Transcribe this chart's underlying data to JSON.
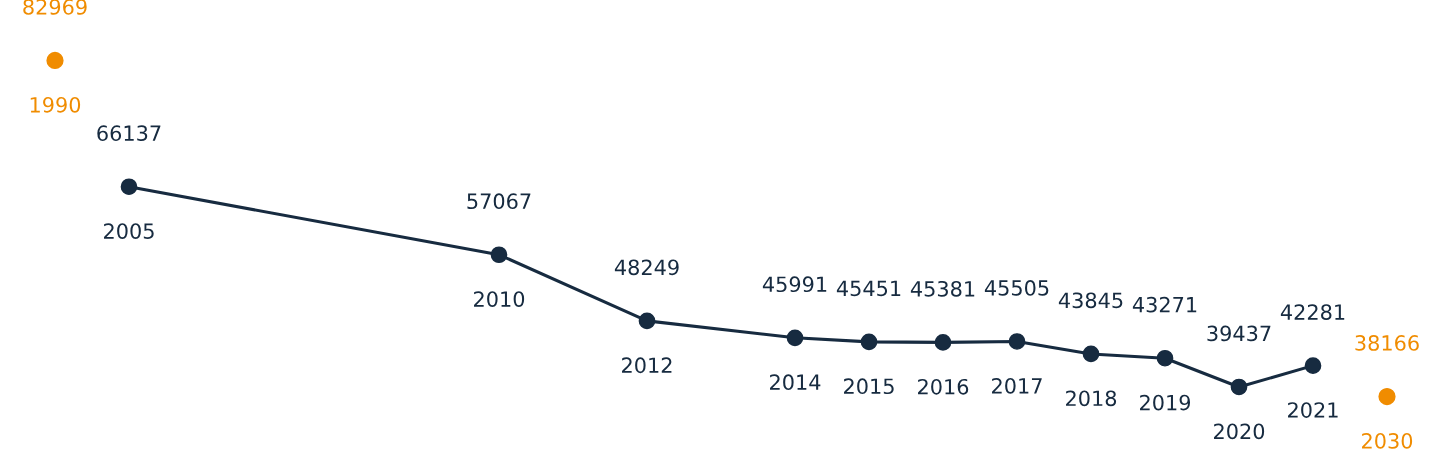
{
  "chart_data": {
    "type": "line",
    "categories": [
      "1990",
      "2005",
      null,
      null,
      null,
      null,
      "2010",
      null,
      "2012",
      null,
      "2014",
      "2015",
      "2016",
      "2017",
      "2018",
      "2019",
      "2020",
      "2021",
      "2030"
    ],
    "data_labels": true,
    "marker": "circle",
    "legend": false,
    "series": [
      {
        "type": "scatter",
        "color": "#f08c00",
        "values": [
          82969,
          null,
          null,
          null,
          null,
          null,
          null,
          null,
          null,
          null,
          null,
          null,
          null,
          null,
          null,
          null,
          null,
          null,
          38166
        ]
      },
      {
        "color": "#172b40",
        "values": [
          null,
          66137,
          null,
          null,
          null,
          null,
          57067,
          null,
          48249,
          null,
          45991,
          45451,
          45381,
          45505,
          43845,
          43271,
          39437,
          42281,
          null
        ]
      }
    ]
  }
}
